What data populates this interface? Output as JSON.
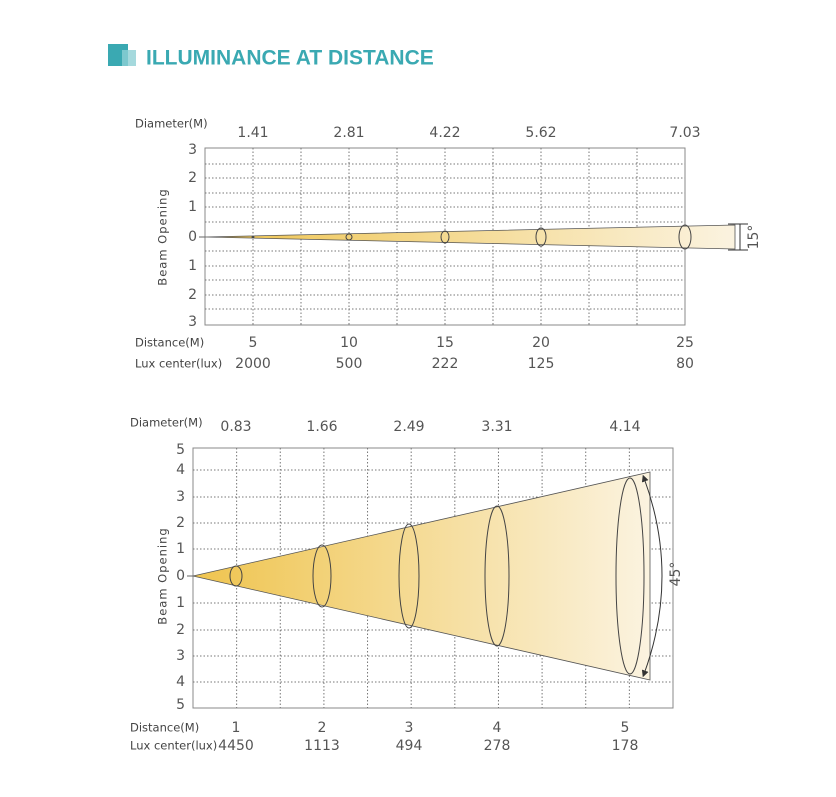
{
  "title": "ILLUMINANCE AT DISTANCE",
  "diagrams": [
    {
      "diameter_label": "Diameter(M)",
      "diameters": [
        "1.41",
        "2.81",
        "4.22",
        "5.62",
        "7.03"
      ],
      "axis_label": "Beam Opening",
      "opening_ticks": [
        "3",
        "2",
        "1",
        "0",
        "1",
        "2",
        "3"
      ],
      "distance_label": "Distance(M)",
      "distances": [
        "5",
        "10",
        "15",
        "20",
        "25"
      ],
      "lux_label": "Lux center(lux)",
      "lux": [
        "2000",
        "500",
        "222",
        "125",
        "80"
      ],
      "angle": "15°"
    },
    {
      "diameter_label": "Diameter(M)",
      "diameters": [
        "0.83",
        "1.66",
        "2.49",
        "3.31",
        "4.14"
      ],
      "axis_label": "Beam Opening",
      "opening_ticks": [
        "5",
        "4",
        "3",
        "2",
        "1",
        "0",
        "1",
        "2",
        "3",
        "4",
        "5"
      ],
      "distance_label": "Distance(M)",
      "distances": [
        "1",
        "2",
        "3",
        "4",
        "5"
      ],
      "lux_label": "Lux center(lux)",
      "lux": [
        "4450",
        "1113",
        "494",
        "278",
        "178"
      ],
      "angle": "45°"
    }
  ]
}
